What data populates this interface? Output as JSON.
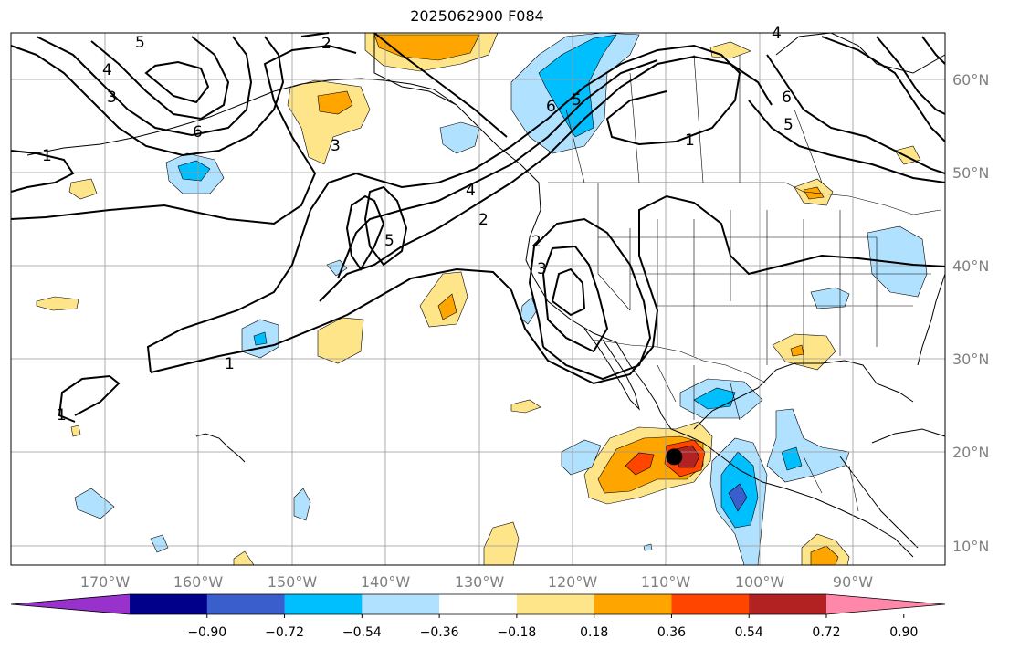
{
  "title": "2025062900 F084",
  "map": {
    "projection": "PlateCarree",
    "lon_range": [
      -180,
      -80
    ],
    "lat_range": [
      8,
      65
    ],
    "longitude_labels": [
      "170°W",
      "160°W",
      "150°W",
      "140°W",
      "130°W",
      "120°W",
      "110°W",
      "100°W",
      "90°W"
    ],
    "latitude_labels": [
      "60°N",
      "50°N",
      "40°N",
      "30°N",
      "20°N",
      "10°N"
    ],
    "gridlines": true,
    "coastlines": true,
    "country_and_state_borders": true
  },
  "colorbar": {
    "orientation": "horizontal",
    "extend": "both",
    "tick_labels": [
      "−0.90",
      "−0.72",
      "−0.54",
      "−0.36",
      "−0.18",
      "0.18",
      "0.36",
      "0.54",
      "0.72",
      "0.90"
    ],
    "colors": [
      "#9932cc",
      "#00008b",
      "#3a5fcd",
      "#00bfff",
      "#b0e2ff",
      "#ffffff",
      "#ffe58a",
      "#ffa500",
      "#ff4500",
      "#b22222",
      "#ff88aa"
    ]
  },
  "contour_labels": [
    "1",
    "2",
    "3",
    "4",
    "5",
    "6"
  ],
  "marker": {
    "name": "storm-center",
    "lon": -109,
    "lat": 19.6,
    "color": "#000000"
  }
}
